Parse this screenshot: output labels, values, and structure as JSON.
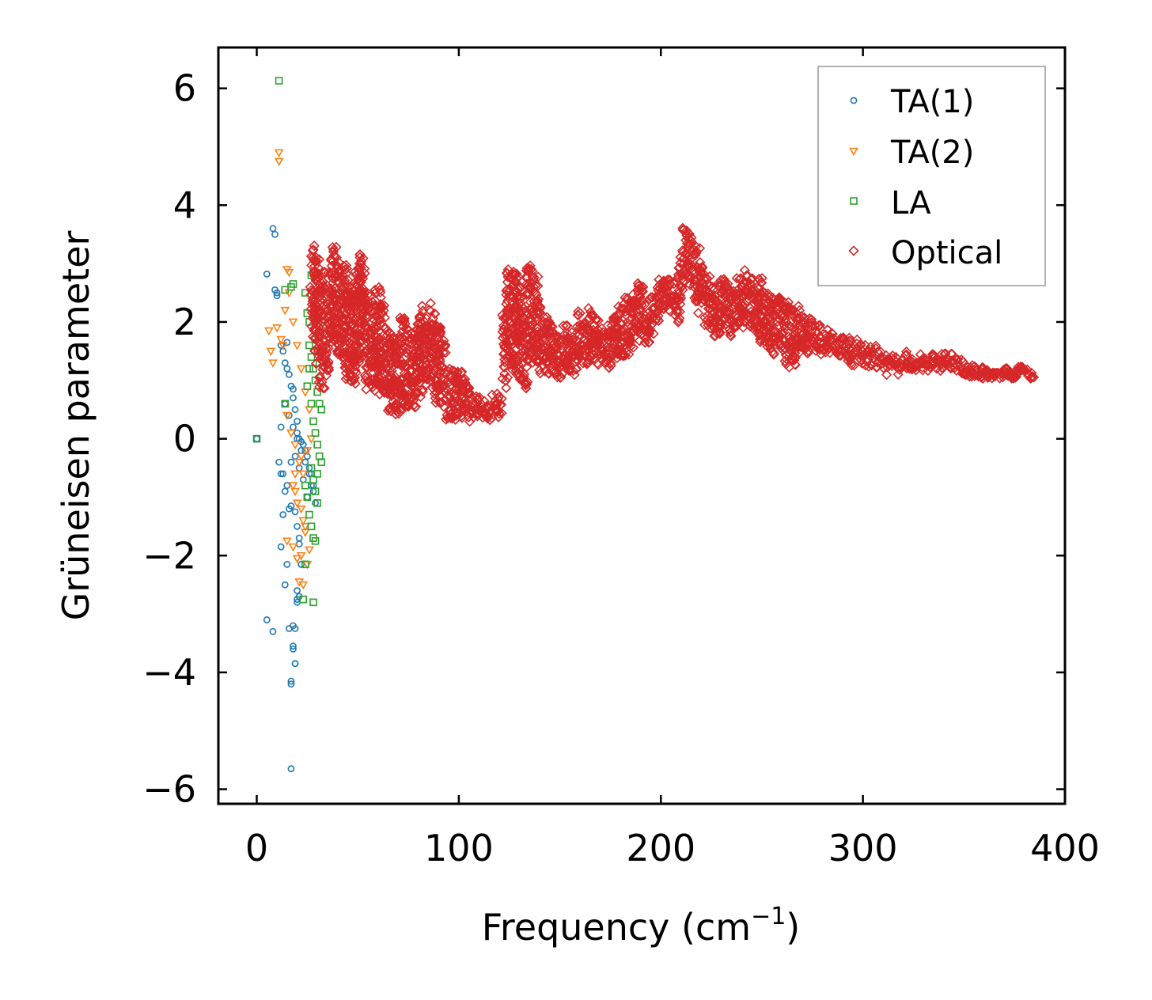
{
  "chart_data": {
    "type": "scatter",
    "title": "",
    "xlabel": "Frequency (cm",
    "xlabel_superscript": "−1",
    "xlabel_suffix": ")",
    "ylabel": "Grüneisen parameter",
    "xlim": [
      -19,
      400
    ],
    "ylim": [
      -6.25,
      6.7
    ],
    "xticks": [
      0,
      100,
      200,
      300,
      400
    ],
    "xtick_labels": [
      "0",
      "100",
      "200",
      "300",
      "400"
    ],
    "yticks": [
      -6,
      -4,
      -2,
      0,
      2,
      4,
      6
    ],
    "ytick_labels": [
      "−6",
      "−4",
      "−2",
      "0",
      "2",
      "4",
      "6"
    ],
    "grid": false,
    "legend_position": "top-right",
    "series": [
      {
        "name": "TA(1)",
        "marker": "circle",
        "color": "#1f77b4",
        "x": [
          0,
          5,
          8,
          9,
          9,
          10,
          10,
          12,
          13,
          14,
          15,
          15,
          16,
          17,
          18,
          18,
          19,
          20,
          20,
          21,
          22,
          23,
          24,
          25,
          26,
          27,
          28,
          29,
          12,
          14,
          16,
          18,
          20,
          22,
          24,
          26,
          28,
          13,
          15,
          17,
          19,
          21,
          23,
          25,
          27,
          11,
          12,
          13,
          14,
          16,
          17,
          19,
          20,
          21,
          5,
          8,
          12,
          14,
          16,
          18,
          19,
          20,
          21,
          22,
          15,
          17,
          18,
          19,
          20,
          21,
          17,
          17,
          18,
          19,
          20
        ],
        "y": [
          0,
          2.82,
          3.6,
          3.5,
          2.55,
          2.5,
          2.45,
          1.6,
          1.5,
          1.3,
          1.2,
          1.65,
          1.1,
          0.9,
          0.85,
          0.7,
          0.5,
          0.3,
          0.1,
          0,
          -0.05,
          -0.1,
          -0.2,
          -0.3,
          -0.5,
          -0.6,
          -0.8,
          -1.1,
          0.2,
          0.6,
          0.4,
          0.2,
          0.0,
          -0.2,
          -0.4,
          -0.6,
          -0.9,
          -0.6,
          -0.8,
          -0.4,
          -0.3,
          -0.5,
          -0.7,
          -1.0,
          -0.8,
          -0.4,
          -0.6,
          -1.3,
          -0.9,
          -1.2,
          -1.15,
          -1.25,
          -1.5,
          -1.8,
          -3.1,
          -3.3,
          -1.85,
          -2.5,
          -3.25,
          -3.2,
          -3.25,
          -2.6,
          -2.7,
          -2.15,
          -2.15,
          -4.15,
          -3.6,
          -3.85,
          -2.75,
          -1.7,
          -5.65,
          -4.2,
          -3.55,
          -3.85,
          -2.8
        ]
      },
      {
        "name": "TA(2)",
        "marker": "triangle_down",
        "color": "#ff7f0e",
        "x": [
          11,
          11,
          15,
          16,
          6,
          7,
          8,
          10,
          12,
          14,
          16,
          18,
          20,
          22,
          24,
          26,
          13,
          15,
          17,
          19,
          21,
          23,
          25,
          27,
          18,
          19,
          20,
          22,
          23,
          24,
          18,
          20,
          22,
          24,
          26,
          21,
          23,
          25,
          15,
          19,
          22
        ],
        "y": [
          4.9,
          4.75,
          2.9,
          2.85,
          1.85,
          1.5,
          1.3,
          1.9,
          1.7,
          2.2,
          2.5,
          2.0,
          1.6,
          1.2,
          0.8,
          0.5,
          1.6,
          0.4,
          0.1,
          -0.1,
          -0.4,
          -0.6,
          -0.2,
          0.0,
          -0.8,
          -0.9,
          -1.1,
          -1.2,
          -1.4,
          -1.5,
          -1.85,
          -2.05,
          -2.0,
          -1.6,
          -1.9,
          -2.45,
          -2.5,
          -2.15,
          -1.75,
          -0.6,
          -0.3
        ]
      },
      {
        "name": "LA",
        "marker": "square",
        "color": "#2ca02c",
        "x": [
          0,
          11,
          14,
          17,
          18,
          24,
          25,
          26,
          27,
          28,
          29,
          30,
          31,
          26,
          27,
          28,
          29,
          30,
          31,
          32,
          27,
          28,
          29,
          30,
          31,
          32,
          27,
          28,
          29,
          30,
          24,
          25,
          26,
          27,
          28,
          29,
          30,
          14,
          25,
          26,
          24,
          28,
          23
        ],
        "y": [
          0,
          6.13,
          2.55,
          2.6,
          2.65,
          2.5,
          2.15,
          2.0,
          2.8,
          2.85,
          1.7,
          1.5,
          1.3,
          1.6,
          1.4,
          1.2,
          1.0,
          0.8,
          0.6,
          0.5,
          0.6,
          0.3,
          0.1,
          -0.1,
          -0.3,
          -0.4,
          -0.5,
          -0.7,
          -0.9,
          -1.1,
          -0.8,
          -1.0,
          -1.3,
          -1.5,
          -1.7,
          -1.75,
          -0.6,
          0.6,
          0.9,
          1.2,
          -2.15,
          -2.8,
          -2.75
        ]
      },
      {
        "name": "Optical",
        "marker": "diamond",
        "color": "#d62728",
        "x": [
          28,
          30,
          32,
          35,
          38,
          40,
          43,
          45,
          48,
          50,
          52,
          55,
          58,
          60,
          62,
          65,
          68,
          70,
          72,
          75,
          78,
          80,
          82,
          85,
          88,
          90,
          92,
          95,
          98,
          100,
          103,
          105,
          108,
          110,
          113,
          115,
          118,
          120,
          123,
          125,
          128,
          130,
          133,
          135,
          138,
          140,
          143,
          145,
          148,
          150,
          153,
          155,
          158,
          160,
          163,
          165,
          168,
          170,
          173,
          175,
          178,
          180,
          183,
          185,
          188,
          190,
          193,
          195,
          198,
          200,
          203,
          205,
          208,
          210,
          212,
          215,
          218,
          220,
          223,
          225,
          228,
          230,
          233,
          235,
          238,
          240,
          243,
          245,
          248,
          250,
          253,
          255,
          258,
          260,
          263,
          265,
          268,
          270,
          273,
          275,
          278,
          280,
          283,
          285,
          288,
          290,
          293,
          295,
          298,
          300,
          303,
          305,
          308,
          310,
          313,
          315,
          318,
          320,
          323,
          325,
          328,
          330,
          333,
          335,
          338,
          340,
          343,
          345,
          348,
          350,
          353,
          355,
          358,
          360,
          363,
          365,
          368,
          370,
          373,
          375,
          378,
          380,
          383
        ],
        "y": [
          2.8,
          2.5,
          2.1,
          2.3,
          2.8,
          2.6,
          2.4,
          2.2,
          2.1,
          2.5,
          2.6,
          2.0,
          1.9,
          2.1,
          1.8,
          1.5,
          1.4,
          1.3,
          1.6,
          1.5,
          1.4,
          1.6,
          1.8,
          1.9,
          1.7,
          1.5,
          1.3,
          1.0,
          0.9,
          0.9,
          0.8,
          0.7,
          0.6,
          0.7,
          0.6,
          0.5,
          0.7,
          0.6,
          1.8,
          2.4,
          2.3,
          2.1,
          1.8,
          2.5,
          2.3,
          2.0,
          1.8,
          1.7,
          1.6,
          1.5,
          1.7,
          1.6,
          1.5,
          1.9,
          1.8,
          2.0,
          1.8,
          1.7,
          1.6,
          1.8,
          1.9,
          2.0,
          2.1,
          2.2,
          2.3,
          2.4,
          2.1,
          2.2,
          2.4,
          2.6,
          2.7,
          2.5,
          2.4,
          2.9,
          3.4,
          3.2,
          3.0,
          2.7,
          2.5,
          2.4,
          2.3,
          2.5,
          2.4,
          2.3,
          2.5,
          2.4,
          2.6,
          2.5,
          2.3,
          2.4,
          2.2,
          2.1,
          2.2,
          2.1,
          2.0,
          1.9,
          2.0,
          1.9,
          1.8,
          1.9,
          1.8,
          1.7,
          1.8,
          1.7,
          1.6,
          1.7,
          1.6,
          1.5,
          1.6,
          1.5,
          1.4,
          1.5,
          1.4,
          1.4,
          1.3,
          1.4,
          1.3,
          1.4,
          1.3,
          1.3,
          1.3,
          1.4,
          1.3,
          1.4,
          1.3,
          1.4,
          1.4,
          1.3,
          1.3,
          1.2,
          1.2,
          1.2,
          1.1,
          1.2,
          1.1,
          1.1,
          1.1,
          1.2,
          1.1,
          1.1,
          1.2,
          1.2,
          1.1
        ],
        "spread": [
          1.6,
          1.8,
          1.9,
          1.8,
          1.7,
          1.7,
          1.8,
          1.8,
          1.7,
          1.8,
          1.9,
          1.7,
          1.6,
          1.7,
          1.6,
          1.5,
          1.4,
          1.3,
          1.5,
          1.4,
          1.3,
          1.4,
          1.5,
          1.5,
          1.4,
          1.3,
          1.2,
          1.0,
          0.9,
          0.8,
          0.7,
          0.6,
          0.5,
          0.4,
          0.4,
          0.3,
          0.4,
          0.4,
          1.4,
          1.8,
          1.8,
          1.6,
          1.4,
          1.6,
          1.5,
          1.3,
          1.0,
          0.9,
          0.8,
          0.7,
          0.8,
          0.7,
          0.6,
          0.9,
          0.8,
          0.9,
          0.8,
          0.7,
          0.6,
          0.8,
          0.9,
          1.0,
          1.0,
          1.0,
          1.0,
          0.9,
          0.7,
          0.7,
          0.7,
          0.6,
          0.5,
          0.5,
          0.6,
          0.8,
          0.9,
          1.0,
          1.0,
          0.9,
          0.9,
          0.8,
          0.8,
          0.9,
          0.8,
          0.8,
          0.9,
          0.8,
          0.9,
          0.9,
          0.9,
          1.1,
          1.0,
          1.0,
          0.9,
          0.9,
          1.1,
          1.0,
          0.9,
          0.6,
          0.5,
          0.5,
          0.5,
          0.4,
          0.4,
          0.4,
          0.4,
          0.4,
          0.4,
          0.4,
          0.4,
          0.4,
          0.4,
          0.3,
          0.3,
          0.3,
          0.3,
          0.3,
          0.3,
          0.3,
          0.2,
          0.2,
          0.2,
          0.2,
          0.2,
          0.2,
          0.2,
          0.2,
          0.2,
          0.2,
          0.2,
          0.2,
          0.2,
          0.2,
          0.1,
          0.1,
          0.1,
          0.1,
          0.1,
          0.1,
          0.1,
          0.1,
          0.1,
          0.1,
          0.1
        ]
      }
    ]
  }
}
